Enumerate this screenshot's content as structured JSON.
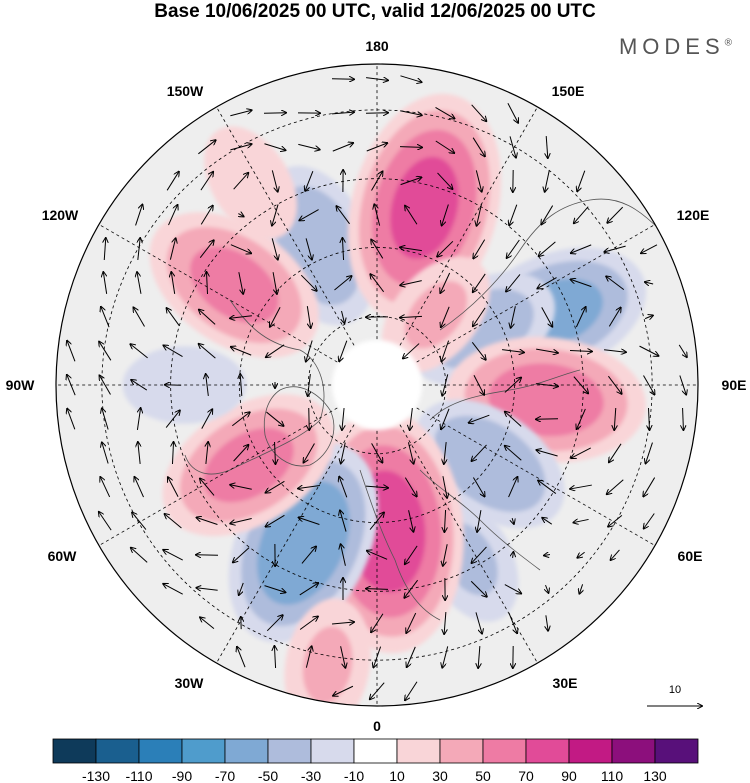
{
  "title": "Base 10/06/2025 00 UTC, valid 12/06/2025 00 UTC",
  "brand": "MODES",
  "brand_mark": "®",
  "longitude_labels": {
    "n": "180",
    "nne": "150E",
    "ene": "120E",
    "e": "90E",
    "ese": "60E",
    "sse": "30E",
    "s": "0",
    "ssw": "30W",
    "wsw": "60W",
    "w": "90W",
    "wnw": "120W",
    "nnw": "150W"
  },
  "vector_reference": {
    "label": "10"
  },
  "colorbar": {
    "colors": [
      "#0e3a5a",
      "#1a5f8f",
      "#2b7fb8",
      "#4f9ccc",
      "#7fa9d4",
      "#aebcdc",
      "#d7daec",
      "#ffffff",
      "#f9d5d8",
      "#f4a9b8",
      "#ee7ba4",
      "#e14b98",
      "#c21a84",
      "#8c0f7c",
      "#58107a"
    ],
    "labels": [
      "-130",
      "-110",
      "-90",
      "-70",
      "-50",
      "-30",
      "-10",
      "10",
      "30",
      "50",
      "70",
      "90",
      "110",
      "130"
    ]
  },
  "anomaly_centers": [
    {
      "lon": -157,
      "lat": 57,
      "value": -45
    },
    {
      "lon": 165,
      "lat": 50,
      "value": 75
    },
    {
      "lon": 112,
      "lat": 48,
      "value": -55
    },
    {
      "lon": 118,
      "lat": 64,
      "value": -40
    },
    {
      "lon": 85,
      "lat": 53,
      "value": 60
    },
    {
      "lon": 55,
      "lat": 60,
      "value": -45
    },
    {
      "lon": 28,
      "lat": 47,
      "value": -30
    },
    {
      "lon": 4,
      "lat": 58,
      "value": 80
    },
    {
      "lon": -25,
      "lat": 52,
      "value": -65
    },
    {
      "lon": -58,
      "lat": 57,
      "value": 55
    },
    {
      "lon": -90,
      "lat": 48,
      "value": -25
    },
    {
      "lon": -125,
      "lat": 52,
      "value": 55
    },
    {
      "lon": -148,
      "lat": 38,
      "value": 25
    },
    {
      "lon": 140,
      "lat": 70,
      "value": 30
    },
    {
      "lon": -10,
      "lat": 28,
      "value": 30
    }
  ]
}
